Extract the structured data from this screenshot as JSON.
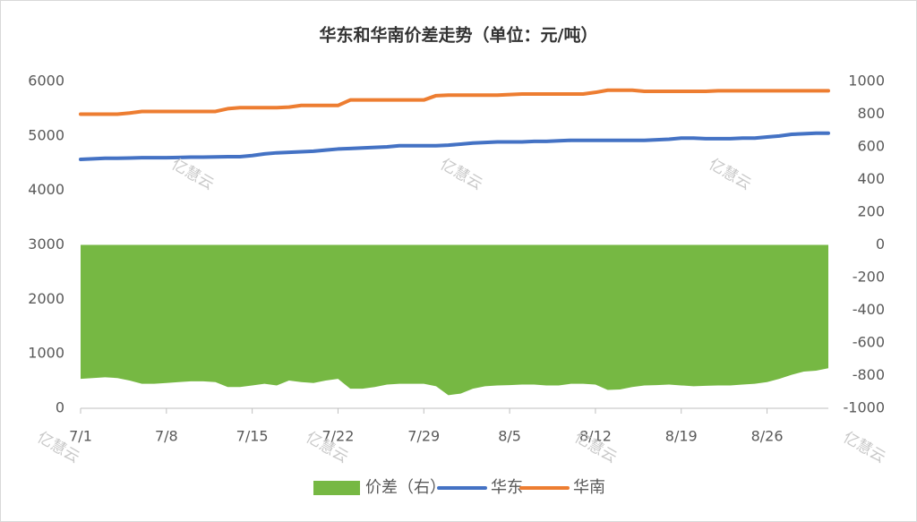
{
  "chart_data": {
    "type": "area-line",
    "title": "华东和华南价差走势（单位：元/吨）",
    "watermark": "亿慧云",
    "categories": [
      "7/1",
      null,
      null,
      null,
      null,
      null,
      null,
      "7/8",
      null,
      null,
      null,
      null,
      null,
      null,
      "7/15",
      null,
      null,
      null,
      null,
      null,
      null,
      "7/22",
      null,
      null,
      null,
      null,
      null,
      null,
      "7/29",
      null,
      null,
      null,
      null,
      null,
      null,
      "8/5",
      null,
      null,
      null,
      null,
      null,
      null,
      "8/12",
      null,
      null,
      null,
      null,
      null,
      null,
      "8/19",
      null,
      null,
      null,
      null,
      null,
      null,
      "8/26",
      null,
      null,
      null,
      null,
      null
    ],
    "ylim": [
      0,
      6000
    ],
    "yticks": [
      0,
      1000,
      2000,
      3000,
      4000,
      5000,
      6000
    ],
    "y2lim": [
      -1000,
      1000
    ],
    "y2ticks": [
      -1000,
      -800,
      -600,
      -400,
      -200,
      0,
      200,
      400,
      600,
      800,
      1000
    ],
    "legend": "bottom",
    "series": [
      {
        "name": "价差（右）",
        "type": "area",
        "axis": "y2",
        "color": "#76b843",
        "values": [
          -820,
          -815,
          -810,
          -815,
          -830,
          -850,
          -850,
          -845,
          -840,
          -835,
          -835,
          -840,
          -870,
          -870,
          -860,
          -850,
          -860,
          -830,
          -840,
          -845,
          -830,
          -820,
          -880,
          -880,
          -870,
          -855,
          -850,
          -850,
          -850,
          -865,
          -920,
          -910,
          -880,
          -865,
          -860,
          -858,
          -855,
          -855,
          -860,
          -860,
          -850,
          -850,
          -855,
          -888,
          -885,
          -870,
          -860,
          -858,
          -855,
          -860,
          -865,
          -862,
          -860,
          -860,
          -855,
          -850,
          -840,
          -820,
          -795,
          -775,
          -770,
          -755
        ]
      },
      {
        "name": "华东",
        "type": "line",
        "color": "#4472c4",
        "values": [
          4570,
          4580,
          4590,
          4590,
          4595,
          4600,
          4600,
          4600,
          4605,
          4610,
          4610,
          4615,
          4620,
          4620,
          4640,
          4670,
          4690,
          4700,
          4710,
          4720,
          4740,
          4760,
          4770,
          4780,
          4790,
          4800,
          4820,
          4820,
          4820,
          4820,
          4830,
          4850,
          4870,
          4880,
          4890,
          4890,
          4890,
          4900,
          4900,
          4910,
          4920,
          4920,
          4920,
          4920,
          4920,
          4920,
          4920,
          4930,
          4940,
          4960,
          4960,
          4950,
          4950,
          4950,
          4960,
          4960,
          4980,
          5000,
          5030,
          5040,
          5050,
          5050
        ]
      },
      {
        "name": "华南",
        "type": "line",
        "color": "#ed7d31",
        "values": [
          5400,
          5400,
          5400,
          5400,
          5420,
          5450,
          5450,
          5450,
          5450,
          5450,
          5450,
          5450,
          5500,
          5520,
          5520,
          5520,
          5520,
          5530,
          5560,
          5560,
          5560,
          5560,
          5660,
          5660,
          5660,
          5660,
          5660,
          5660,
          5660,
          5740,
          5750,
          5750,
          5750,
          5750,
          5750,
          5760,
          5770,
          5770,
          5770,
          5770,
          5770,
          5770,
          5800,
          5840,
          5840,
          5840,
          5820,
          5820,
          5820,
          5820,
          5820,
          5820,
          5830,
          5830,
          5830,
          5830,
          5830,
          5830,
          5830,
          5830,
          5830,
          5830
        ]
      }
    ]
  }
}
